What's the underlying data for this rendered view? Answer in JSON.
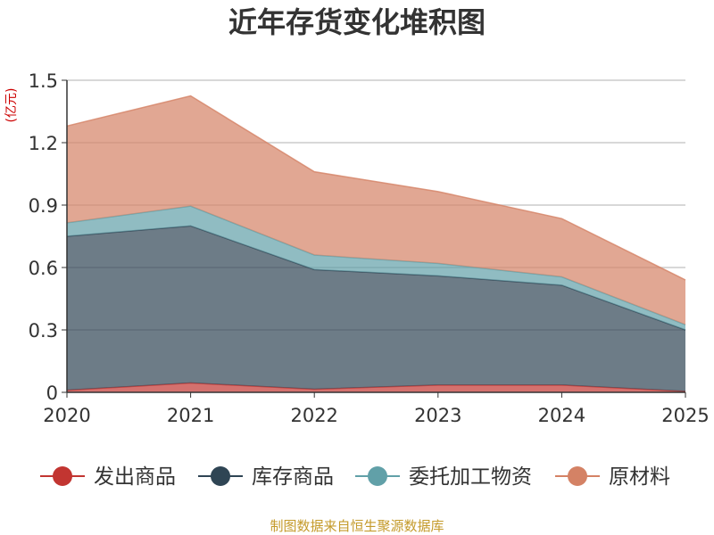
{
  "chart_data": {
    "type": "area",
    "stacked": true,
    "title": "近年存货变化堆积图",
    "unit_label": "(亿元)",
    "x": [
      "2020",
      "2021",
      "2022",
      "2023",
      "2024",
      "2025"
    ],
    "y_ticks": [
      "0",
      "0.3",
      "0.6",
      "0.9",
      "1.2",
      "1.5"
    ],
    "ylim": [
      0,
      1.5
    ],
    "grid": true,
    "legend_position": "bottom",
    "series": [
      {
        "name": "发出商品",
        "color": "#c23531",
        "values": [
          0.01,
          0.045,
          0.015,
          0.035,
          0.035,
          0.005
        ]
      },
      {
        "name": "库存商品",
        "color": "#2f4554",
        "values": [
          0.74,
          0.755,
          0.575,
          0.525,
          0.48,
          0.295
        ]
      },
      {
        "name": "委托加工物资",
        "color": "#61a0a8",
        "values": [
          0.065,
          0.095,
          0.07,
          0.06,
          0.04,
          0.025
        ]
      },
      {
        "name": "原材料",
        "color": "#d48265",
        "values": [
          0.465,
          0.53,
          0.4,
          0.345,
          0.28,
          0.215
        ]
      }
    ],
    "source_note": "制图数据来自恒生聚源数据库"
  }
}
